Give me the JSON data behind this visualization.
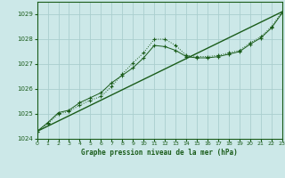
{
  "title": "Graphe pression niveau de la mer (hPa)",
  "background_color": "#cce8e8",
  "grid_color": "#aacece",
  "line_color": "#1a5c1a",
  "x_min": 0,
  "x_max": 23,
  "y_min": 1024,
  "y_max": 1029.5,
  "yticks": [
    1024,
    1025,
    1026,
    1027,
    1028,
    1029
  ],
  "xticks": [
    0,
    1,
    2,
    3,
    4,
    5,
    6,
    7,
    8,
    9,
    10,
    11,
    12,
    13,
    14,
    15,
    16,
    17,
    18,
    19,
    20,
    21,
    22,
    23
  ],
  "series1_x": [
    0,
    1,
    2,
    3,
    4,
    5,
    6,
    7,
    8,
    9,
    10,
    11,
    12,
    13,
    14,
    15,
    16,
    17,
    18,
    19,
    20,
    21,
    22,
    23
  ],
  "series1_y": [
    1024.3,
    1024.6,
    1025.0,
    1025.1,
    1025.35,
    1025.55,
    1025.7,
    1026.1,
    1026.6,
    1027.05,
    1027.45,
    1028.0,
    1028.0,
    1027.75,
    1027.35,
    1027.3,
    1027.3,
    1027.35,
    1027.45,
    1027.55,
    1027.85,
    1028.1,
    1028.5,
    1029.1
  ],
  "series2_x": [
    0,
    1,
    2,
    3,
    4,
    5,
    6,
    7,
    8,
    9,
    10,
    11,
    12,
    13,
    14,
    15,
    16,
    17,
    18,
    19,
    20,
    21,
    22,
    23
  ],
  "series2_y": [
    1024.3,
    1024.65,
    1025.05,
    1025.15,
    1025.45,
    1025.65,
    1025.85,
    1026.25,
    1026.55,
    1026.85,
    1027.25,
    1027.75,
    1027.7,
    1027.55,
    1027.3,
    1027.25,
    1027.25,
    1027.3,
    1027.4,
    1027.5,
    1027.8,
    1028.05,
    1028.45,
    1029.05
  ],
  "series3_x": [
    0,
    23
  ],
  "series3_y": [
    1024.3,
    1029.1
  ]
}
